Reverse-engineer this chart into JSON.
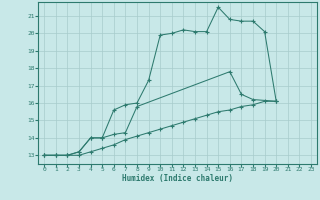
{
  "xlabel": "Humidex (Indice chaleur)",
  "bg_color": "#c8e8e8",
  "line_color": "#2d7a6e",
  "grid_color": "#a8cccc",
  "xlim": [
    -0.5,
    23.5
  ],
  "ylim": [
    12.5,
    21.8
  ],
  "yticks": [
    13,
    14,
    15,
    16,
    17,
    18,
    19,
    20,
    21
  ],
  "xticks": [
    0,
    1,
    2,
    3,
    4,
    5,
    6,
    7,
    8,
    9,
    10,
    11,
    12,
    13,
    14,
    15,
    16,
    17,
    18,
    19,
    20,
    21,
    22,
    23
  ],
  "line1_x": [
    0,
    1,
    2,
    3,
    4,
    5,
    6,
    7,
    8,
    9,
    10,
    11,
    12,
    13,
    14,
    15,
    16,
    17,
    18,
    19,
    20
  ],
  "line1_y": [
    13,
    13,
    13,
    13.2,
    14,
    14,
    15.6,
    15.9,
    16.0,
    17.3,
    19.9,
    20.0,
    20.2,
    20.1,
    20.1,
    21.5,
    20.8,
    20.7,
    20.7,
    20.1,
    16.1
  ],
  "line2_x": [
    0,
    1,
    2,
    3,
    4,
    5,
    6,
    7,
    8,
    16,
    17,
    18,
    20
  ],
  "line2_y": [
    13,
    13,
    13,
    13.2,
    14.0,
    14.0,
    14.2,
    14.3,
    15.8,
    17.8,
    16.5,
    16.2,
    16.1
  ],
  "line3_x": [
    0,
    1,
    2,
    3,
    4,
    5,
    6,
    7,
    8,
    9,
    10,
    11,
    12,
    13,
    14,
    15,
    16,
    17,
    18,
    19,
    20
  ],
  "line3_y": [
    13,
    13,
    13,
    13.0,
    13.2,
    13.4,
    13.6,
    13.9,
    14.1,
    14.3,
    14.5,
    14.7,
    14.9,
    15.1,
    15.3,
    15.5,
    15.6,
    15.8,
    15.9,
    16.1,
    16.1
  ]
}
